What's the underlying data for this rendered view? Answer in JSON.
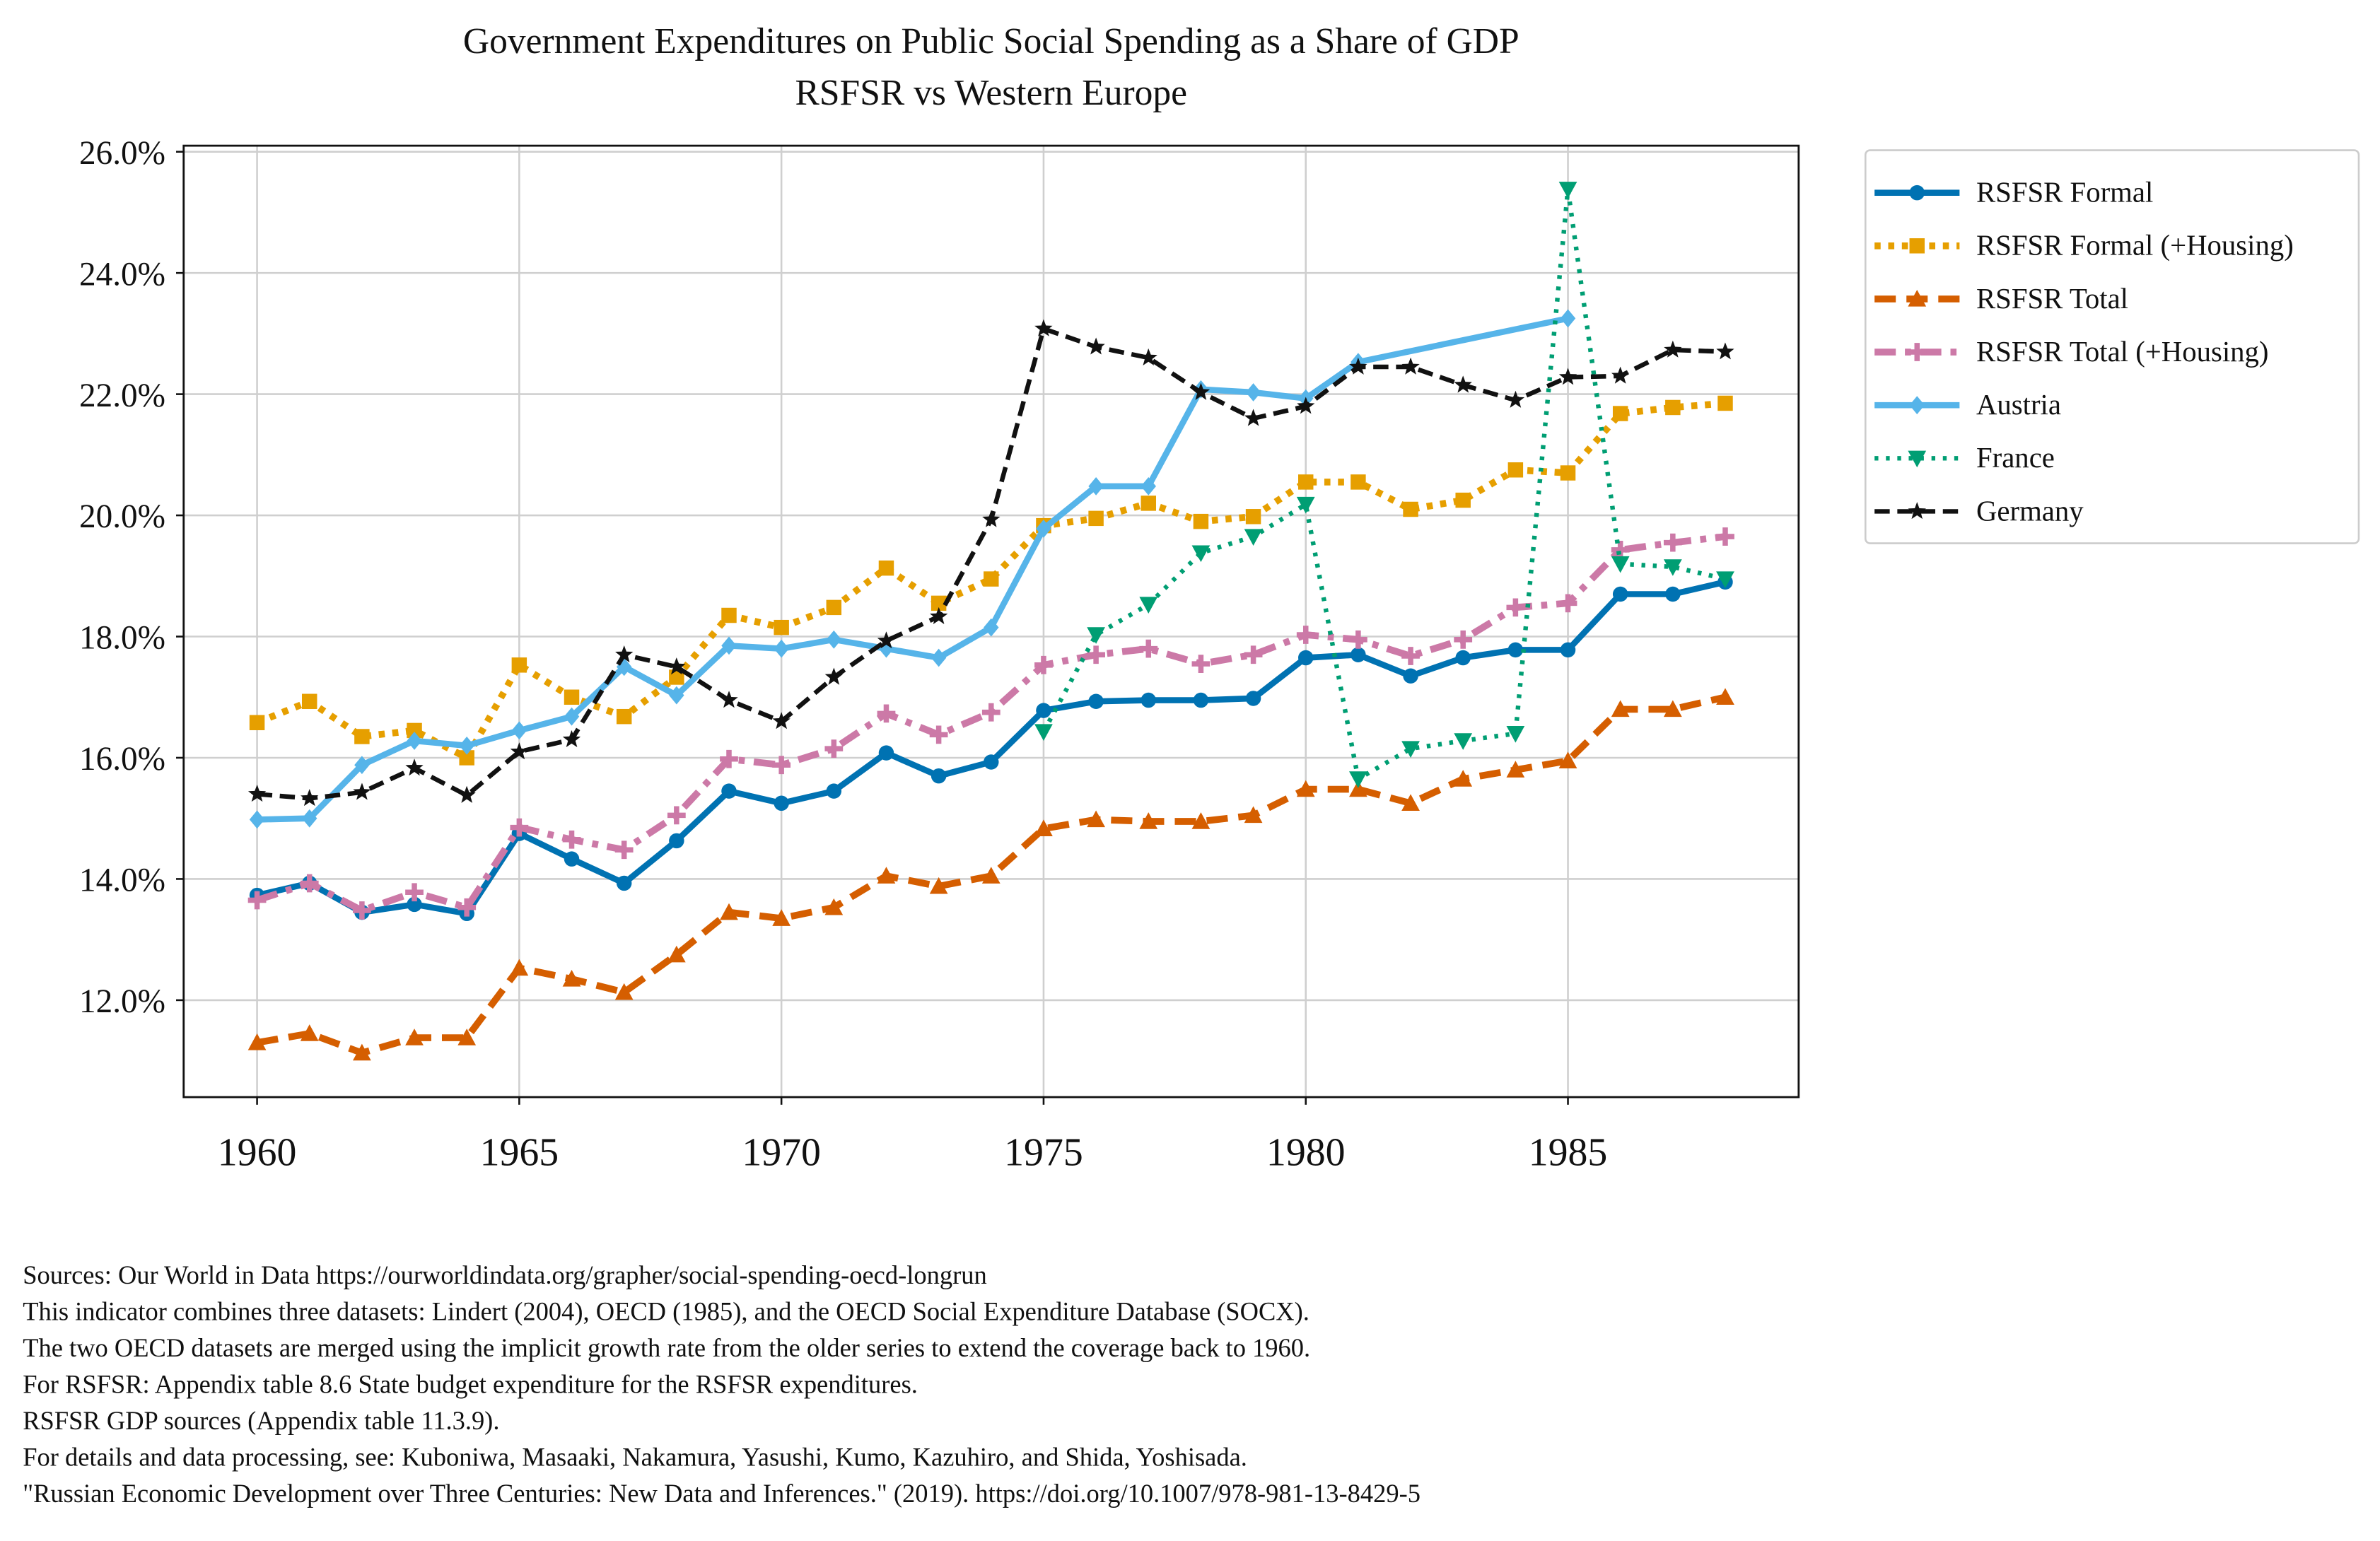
{
  "chart_data": {
    "type": "line",
    "title": "Government Expenditures on Public Social Spending as a Share of GDP",
    "subtitle": "RSFSR vs Western Europe",
    "xlabel": "",
    "ylabel": "",
    "xlim": [
      1958.6,
      1989.4
    ],
    "ylim": [
      10.4,
      26.1
    ],
    "grid": true,
    "legend_placement": "outside-top-right",
    "x_ticks": [
      1960,
      1965,
      1970,
      1975,
      1980,
      1985
    ],
    "x_tick_labels": [
      "1960",
      "1965",
      "1970",
      "1975",
      "1980",
      "1985"
    ],
    "y_ticks": [
      12,
      14,
      16,
      18,
      20,
      22,
      24,
      26
    ],
    "y_tick_labels": [
      "12.0%",
      "14.0%",
      "16.0%",
      "18.0%",
      "20.0%",
      "22.0%",
      "24.0%",
      "26.0%"
    ],
    "x": [
      1960,
      1961,
      1962,
      1963,
      1964,
      1965,
      1966,
      1967,
      1968,
      1969,
      1970,
      1971,
      1972,
      1973,
      1974,
      1975,
      1976,
      1977,
      1978,
      1979,
      1980,
      1981,
      1982,
      1983,
      1984,
      1985,
      1986,
      1987,
      1988
    ],
    "series": [
      {
        "name": "RSFSR Formal",
        "color": "#0072B2",
        "marker": "circle",
        "style": "solid",
        "values": [
          13.73,
          13.93,
          13.45,
          13.58,
          13.43,
          14.75,
          14.33,
          13.93,
          14.63,
          15.45,
          15.25,
          15.45,
          16.08,
          15.7,
          15.93,
          16.78,
          16.93,
          16.95,
          16.95,
          16.98,
          17.65,
          17.7,
          17.35,
          17.65,
          17.78,
          17.78,
          18.7,
          18.7,
          18.9
        ]
      },
      {
        "name": "RSFSR Formal (+Housing)",
        "color": "#E69F00",
        "marker": "square",
        "style": "dotted-thick",
        "values": [
          16.58,
          16.93,
          16.35,
          16.45,
          16.0,
          17.53,
          17.0,
          16.68,
          17.33,
          18.35,
          18.15,
          18.48,
          19.13,
          18.55,
          18.95,
          19.83,
          19.95,
          20.2,
          19.9,
          19.98,
          20.55,
          20.55,
          20.1,
          20.25,
          20.75,
          20.7,
          21.68,
          21.78,
          21.85
        ]
      },
      {
        "name": "RSFSR Total",
        "color": "#D55E00",
        "marker": "triangle-up",
        "style": "dashed-thick",
        "values": [
          11.3,
          11.45,
          11.13,
          11.38,
          11.38,
          12.53,
          12.35,
          12.13,
          12.75,
          13.45,
          13.35,
          13.53,
          14.05,
          13.88,
          14.05,
          14.83,
          14.98,
          14.95,
          14.95,
          15.05,
          15.48,
          15.48,
          15.25,
          15.65,
          15.8,
          15.95,
          16.8,
          16.8,
          17.0
        ]
      },
      {
        "name": "RSFSR Total (+Housing)",
        "color": "#CC79A7",
        "marker": "plus",
        "style": "dashdot-thick",
        "values": [
          13.65,
          13.93,
          13.48,
          13.78,
          13.53,
          14.85,
          14.65,
          14.48,
          15.05,
          15.98,
          15.88,
          16.15,
          16.73,
          16.38,
          16.75,
          17.53,
          17.7,
          17.8,
          17.55,
          17.7,
          18.03,
          17.95,
          17.68,
          17.95,
          18.48,
          18.55,
          19.43,
          19.55,
          19.65
        ]
      },
      {
        "name": "Austria",
        "color": "#56B4E9",
        "marker": "diamond",
        "style": "solid",
        "values": [
          14.98,
          15.0,
          15.88,
          16.28,
          16.2,
          16.45,
          16.68,
          17.5,
          17.03,
          17.85,
          17.8,
          17.95,
          17.8,
          17.65,
          18.15,
          19.78,
          20.48,
          20.48,
          22.08,
          22.03,
          21.93,
          22.53,
          null,
          null,
          null,
          23.25,
          null,
          null,
          null
        ]
      },
      {
        "name": "France",
        "color": "#009E73",
        "marker": "triangle-down",
        "style": "dotted",
        "values": [
          null,
          null,
          null,
          null,
          null,
          null,
          null,
          null,
          null,
          null,
          null,
          null,
          null,
          null,
          null,
          16.43,
          18.03,
          18.53,
          19.38,
          19.65,
          20.18,
          15.65,
          16.15,
          16.28,
          16.4,
          25.38,
          19.2,
          19.15,
          18.95
        ]
      },
      {
        "name": "Germany",
        "color": "#111111",
        "marker": "star",
        "style": "dashed",
        "values": [
          15.4,
          15.33,
          15.43,
          15.83,
          15.38,
          16.1,
          16.3,
          17.7,
          17.5,
          16.95,
          16.6,
          17.33,
          17.93,
          18.33,
          19.93,
          23.08,
          22.78,
          22.6,
          22.03,
          21.6,
          21.8,
          22.45,
          22.45,
          22.15,
          21.9,
          22.28,
          22.3,
          22.73,
          22.7
        ]
      }
    ]
  },
  "footer": [
    "Sources: Our World in Data https://ourworldindata.org/grapher/social-spending-oecd-longrun",
    "This indicator combines three datasets: Lindert (2004), OECD (1985), and the OECD Social Expenditure Database (SOCX).",
    "The two OECD datasets are merged using the implicit growth rate from the older series to extend the coverage back to 1960.",
    "For RSFSR: Appendix table 8.6 State budget expenditure for the RSFSR expenditures.",
    "RSFSR GDP sources (Appendix table 11.3.9).",
    "For details and data processing, see: Kuboniwa, Masaaki, Nakamura, Yasushi, Kumo, Kazuhiro, and Shida, Yoshisada.",
    "\"Russian Economic Development over Three Centuries: New Data and Inferences.\" (2019). https://doi.org/10.1007/978-981-13-8429-5"
  ]
}
